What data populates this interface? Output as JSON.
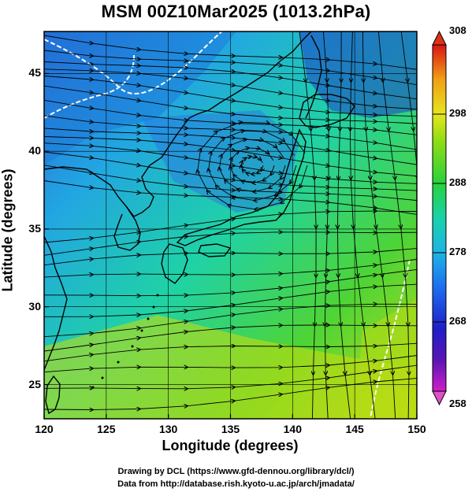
{
  "title": "MSM 00Z10Mar2025 (1013.2hPa)",
  "xlabel": "Longitude (degrees)",
  "ylabel": "Latitude  (degrees)",
  "credits": {
    "line1": "Drawing by DCL (https://www.gfd-dennou.org/library/dcl/)",
    "line2": "Data from http://database.rish.kyoto-u.ac.jp/arch/jmadata/"
  },
  "map": {
    "lon_range": [
      120,
      150
    ],
    "lat_range": [
      22.8,
      47.7
    ],
    "lon_ticks": [
      "120",
      "125",
      "130",
      "135",
      "140",
      "145",
      "150"
    ],
    "lat_ticks": [
      "25",
      "30",
      "35",
      "40",
      "45"
    ],
    "grid": true
  },
  "colorbar": {
    "min": 258,
    "max": 308,
    "ticks": [
      "258",
      "268",
      "278",
      "288",
      "298",
      "308"
    ],
    "tick_values": [
      258,
      268,
      278,
      288,
      298,
      308
    ],
    "colors": [
      "#d01ec8",
      "#5a14b4",
      "#1e1ec8",
      "#1e6ef0",
      "#1eb4e6",
      "#19d2aa",
      "#28d23c",
      "#8cdc14",
      "#e6e61e",
      "#f0a014",
      "#e63c14",
      "#dc1414"
    ]
  },
  "field": "temperature (K) with streamlines at 1013.2hPa"
}
